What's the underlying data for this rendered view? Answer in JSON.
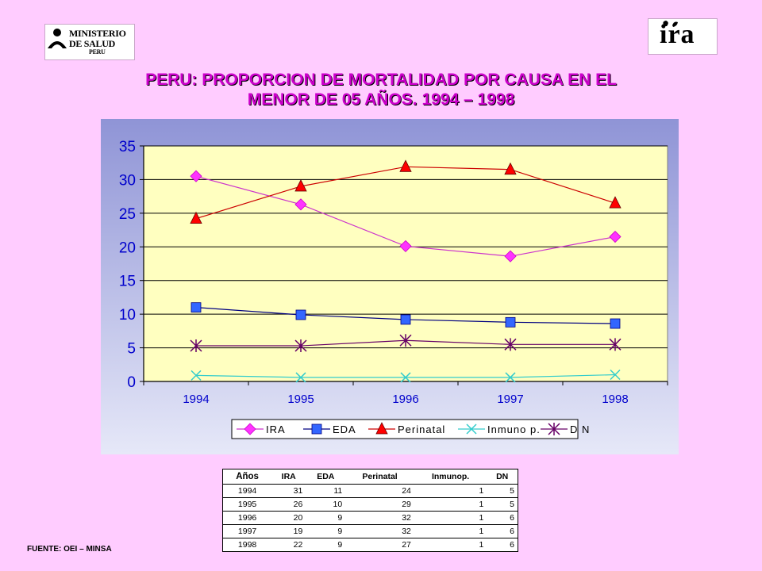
{
  "header": {
    "logo_left": {
      "lines": [
        "MINISTERIO",
        "DE SALUD",
        "PERU"
      ],
      "icon": "people-silhouette-icon"
    },
    "logo_right": {
      "text": "ira",
      "icon": "lungs-icon"
    }
  },
  "title_lines": [
    "PERU: PROPORCION DE MORTALIDAD POR CAUSA EN EL",
    "MENOR DE 05 AÑOS. 1994 – 1998"
  ],
  "colors": {
    "background": "#ffccff",
    "title": "#cc00cc",
    "plot_area": "#ffffc0",
    "chart_bg_top": "#8f94d6",
    "chart_bg_bottom": "#e6e8f8"
  },
  "chart_data": {
    "type": "line",
    "title": "",
    "xlabel": "",
    "ylabel": "",
    "categories": [
      "1994",
      "1995",
      "1996",
      "1997",
      "1998"
    ],
    "ylim": [
      0,
      35
    ],
    "yticks": [
      "0",
      "5",
      "10",
      "15",
      "20",
      "25",
      "30",
      "35"
    ],
    "grid": true,
    "legend_position": "bottom",
    "series": [
      {
        "name": "IRA",
        "values": [
          30.5,
          26.3,
          20.1,
          18.6,
          21.5
        ],
        "color": "#cc33cc",
        "marker": "diamond",
        "marker_color": "#ff33ff"
      },
      {
        "name": "EDA",
        "values": [
          11.0,
          9.9,
          9.2,
          8.8,
          8.6
        ],
        "color": "#000080",
        "marker": "square",
        "marker_color": "#3366ff"
      },
      {
        "name": "Perinatal",
        "values": [
          24.2,
          29.0,
          31.9,
          31.5,
          26.5
        ],
        "color": "#cc0000",
        "marker": "triangle",
        "marker_color": "#ff0000"
      },
      {
        "name": "Inmuno p.",
        "values": [
          0.9,
          0.6,
          0.6,
          0.6,
          1.0
        ],
        "color": "#33cccc",
        "marker": "x",
        "marker_color": "#33cccc"
      },
      {
        "name": "D N",
        "values": [
          5.3,
          5.3,
          6.1,
          5.5,
          5.5
        ],
        "color": "#660066",
        "marker": "star",
        "marker_color": "#660066"
      }
    ]
  },
  "table": {
    "headers": [
      "Años",
      "IRA",
      "EDA",
      "Perinatal",
      "Inmunop.",
      "DN"
    ],
    "rows": [
      [
        "1994",
        "31",
        "11",
        "24",
        "1",
        "5"
      ],
      [
        "1995",
        "26",
        "10",
        "29",
        "1",
        "5"
      ],
      [
        "1996",
        "20",
        "9",
        "32",
        "1",
        "6"
      ],
      [
        "1997",
        "19",
        "9",
        "32",
        "1",
        "6"
      ],
      [
        "1998",
        "22",
        "9",
        "27",
        "1",
        "6"
      ]
    ]
  },
  "source": "FUENTE: OEI – MINSA"
}
